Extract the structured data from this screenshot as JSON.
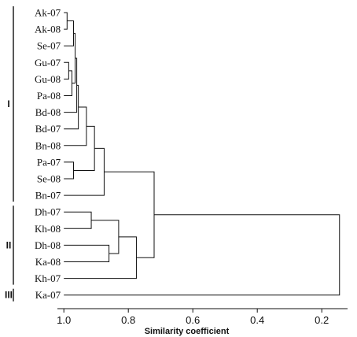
{
  "chart_data": {
    "type": "dendrogram",
    "xlabel": "Similarity coefficient",
    "xlim": [
      1.02,
      0.12
    ],
    "x_ticks": [
      1.0,
      0.8,
      0.6,
      0.4,
      0.2
    ],
    "x_tick_labels": [
      "1.0",
      "0.8",
      "0.6",
      "0.4",
      "0.2"
    ],
    "leaves": [
      "Ak-07",
      "Ak-08",
      "Se-07",
      "Gu-07",
      "Gu-08",
      "Pa-08",
      "Bd-08",
      "Bd-07",
      "Bn-08",
      "Pa-07",
      "Se-08",
      "Bn-07",
      "Dh-07",
      "Kh-08",
      "Dh-08",
      "Ka-08",
      "Kh-07",
      "Ka-07"
    ],
    "groups": [
      {
        "label": "I",
        "first_leaf": 0,
        "last_leaf": 11
      },
      {
        "label": "II",
        "first_leaf": 12,
        "last_leaf": 16
      },
      {
        "label": "III",
        "first_leaf": 17,
        "last_leaf": 17
      }
    ],
    "merges": [
      {
        "id": "m1",
        "children": [
          "L0",
          "L1"
        ],
        "height": 0.99
      },
      {
        "id": "m2",
        "children": [
          "m1",
          "L2"
        ],
        "height": 0.97
      },
      {
        "id": "m3",
        "children": [
          "L3",
          "L4"
        ],
        "height": 0.985
      },
      {
        "id": "m4",
        "children": [
          "m3",
          "L5"
        ],
        "height": 0.975
      },
      {
        "id": "m5",
        "children": [
          "m2",
          "m4"
        ],
        "height": 0.965
      },
      {
        "id": "m6",
        "children": [
          "m5",
          "L6"
        ],
        "height": 0.96
      },
      {
        "id": "m7",
        "children": [
          "m6",
          "L7"
        ],
        "height": 0.955
      },
      {
        "id": "m8",
        "children": [
          "m7",
          "L8"
        ],
        "height": 0.93
      },
      {
        "id": "m9",
        "children": [
          "L9",
          "L10"
        ],
        "height": 0.97
      },
      {
        "id": "m10",
        "children": [
          "m8",
          "m9"
        ],
        "height": 0.905
      },
      {
        "id": "m11",
        "children": [
          "m10",
          "L11"
        ],
        "height": 0.875
      },
      {
        "id": "m12",
        "children": [
          "L12",
          "L13"
        ],
        "height": 0.915
      },
      {
        "id": "m13",
        "children": [
          "L14",
          "L15"
        ],
        "height": 0.86
      },
      {
        "id": "m14",
        "children": [
          "m12",
          "m13"
        ],
        "height": 0.83
      },
      {
        "id": "m15",
        "children": [
          "m14",
          "L16"
        ],
        "height": 0.775
      },
      {
        "id": "m16",
        "children": [
          "m11",
          "m15"
        ],
        "height": 0.72
      },
      {
        "id": "m17",
        "children": [
          "m16",
          "L17"
        ],
        "height": 0.145
      }
    ]
  }
}
